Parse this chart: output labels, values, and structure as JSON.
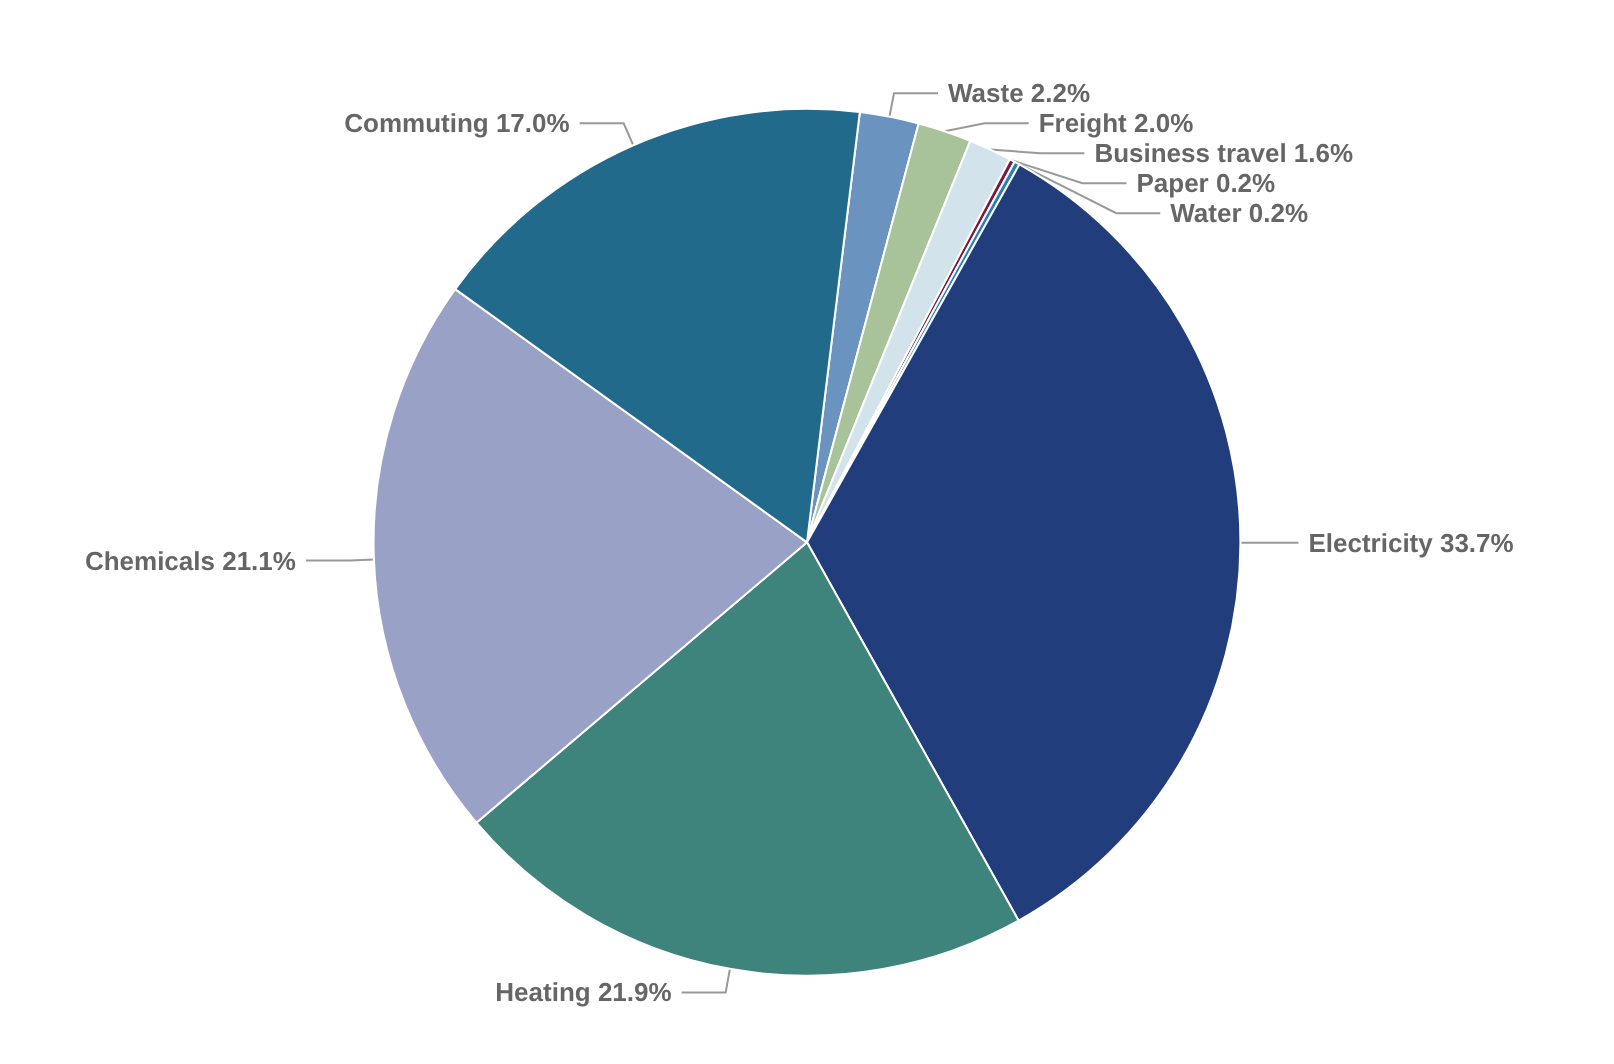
{
  "chart_data": {
    "type": "pie",
    "categories": [
      "Waste",
      "Freight",
      "Business travel",
      "Paper",
      "Water",
      "Electricity",
      "Heating",
      "Chemicals",
      "Commuting"
    ],
    "values": [
      2.2,
      2.0,
      1.6,
      0.2,
      0.2,
      33.7,
      21.9,
      21.1,
      17.0
    ],
    "colors": [
      "#6b93bf",
      "#a8c29a",
      "#d3e3ec",
      "#7a1a3e",
      "#2a7fb8",
      "#213d7b",
      "#3f837d",
      "#99a1c6",
      "#216a8c"
    ],
    "value_labels": [
      "2.2%",
      "2.0%",
      "1.6%",
      "0.2%",
      "0.2%",
      "33.7%",
      "21.9%",
      "21.1%",
      "17.0%"
    ]
  }
}
